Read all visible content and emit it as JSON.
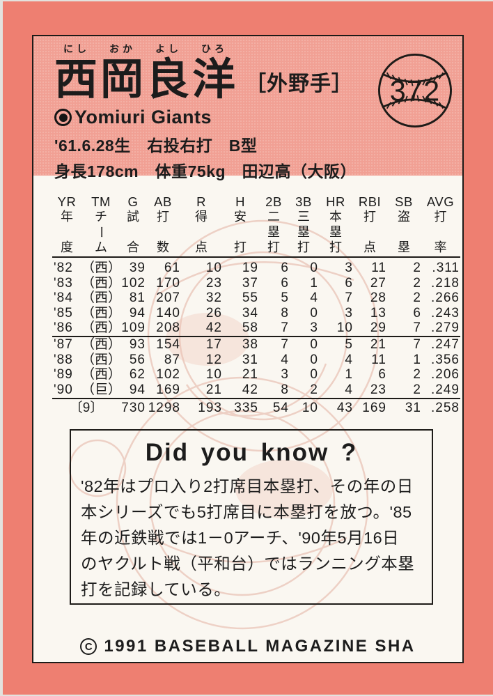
{
  "card_number": "372",
  "header": {
    "name_parts": [
      {
        "kanji": "西",
        "kana": "にし"
      },
      {
        "kanji": "岡",
        "kana": "おか"
      },
      {
        "kanji": "良",
        "kana": "よし"
      },
      {
        "kanji": "洋",
        "kana": "ひろ"
      }
    ],
    "position": "［外野手］",
    "team": "Yomiuri Giants",
    "birth_line": "'61.6.28生　右投右打　B型",
    "body_line": "身長178cm　体重75kg　田辺高（大阪）"
  },
  "stats": {
    "columns": [
      {
        "en": "YR",
        "jp": [
          "年",
          "度"
        ]
      },
      {
        "en": "TM",
        "jp": [
          "チ",
          "ー",
          "ム"
        ]
      },
      {
        "en": "G",
        "jp": [
          "試",
          "合"
        ]
      },
      {
        "en": "AB",
        "jp": [
          "打",
          "数"
        ]
      },
      {
        "en": "R",
        "jp": [
          "得",
          "点"
        ]
      },
      {
        "en": "H",
        "jp": [
          "安",
          "打"
        ]
      },
      {
        "en": "2B",
        "jp": [
          "二",
          "塁",
          "打"
        ]
      },
      {
        "en": "3B",
        "jp": [
          "三",
          "塁",
          "打"
        ]
      },
      {
        "en": "HR",
        "jp": [
          "本",
          "塁",
          "打"
        ]
      },
      {
        "en": "RBI",
        "jp": [
          "打",
          "点"
        ]
      },
      {
        "en": "SB",
        "jp": [
          "盗",
          "塁"
        ]
      },
      {
        "en": "AVG",
        "jp": [
          "打",
          "率"
        ]
      }
    ],
    "group_break_after": 5,
    "rows": [
      {
        "year": "'82",
        "team": "（西）",
        "values": [
          "39",
          "61",
          "10",
          "19",
          "6",
          "0",
          "3",
          "11",
          "2",
          ".311"
        ]
      },
      {
        "year": "'83",
        "team": "（西）",
        "values": [
          "102",
          "170",
          "23",
          "37",
          "6",
          "1",
          "6",
          "27",
          "2",
          ".218"
        ]
      },
      {
        "year": "'84",
        "team": "（西）",
        "values": [
          "81",
          "207",
          "32",
          "55",
          "5",
          "4",
          "7",
          "28",
          "2",
          ".266"
        ]
      },
      {
        "year": "'85",
        "team": "（西）",
        "values": [
          "94",
          "140",
          "26",
          "34",
          "8",
          "0",
          "3",
          "13",
          "6",
          ".243"
        ]
      },
      {
        "year": "'86",
        "team": "（西）",
        "values": [
          "109",
          "208",
          "42",
          "58",
          "7",
          "3",
          "10",
          "29",
          "7",
          ".279"
        ]
      },
      {
        "year": "'87",
        "team": "（西）",
        "values": [
          "93",
          "154",
          "17",
          "38",
          "7",
          "0",
          "5",
          "21",
          "7",
          ".247"
        ]
      },
      {
        "year": "'88",
        "team": "（西）",
        "values": [
          "56",
          "87",
          "12",
          "31",
          "4",
          "0",
          "4",
          "11",
          "1",
          ".356"
        ]
      },
      {
        "year": "'89",
        "team": "（西）",
        "values": [
          "62",
          "102",
          "10",
          "21",
          "3",
          "0",
          "1",
          "6",
          "2",
          ".206"
        ]
      },
      {
        "year": "'90",
        "team": "（巨）",
        "values": [
          "94",
          "169",
          "21",
          "42",
          "8",
          "2",
          "4",
          "23",
          "2",
          ".249"
        ]
      }
    ],
    "totals": {
      "label": "〔9〕",
      "values": [
        "730",
        "1298",
        "193",
        "335",
        "54",
        "10",
        "43",
        "169",
        "31",
        ".258"
      ]
    }
  },
  "did_you_know": {
    "title": "Did you know ?",
    "body": "'82年はプロ入り2打席目本塁打、その年の日\n本シリーズでも5打席目に本塁打を放つ。'85\n年の近鉄戦では1－0アーチ、'90年5月16日\nのヤクルト戦（平和台）ではランニング本塁\n打を記録している。"
  },
  "footer": {
    "copyright_symbol": "C",
    "text": "1991 BASEBALL MAGAZINE SHA"
  },
  "colors": {
    "border_salmon": "#ee7f71",
    "header_pink": "#f1a094",
    "card_white": "#faf7f1",
    "ink": "#1c1c1c"
  }
}
